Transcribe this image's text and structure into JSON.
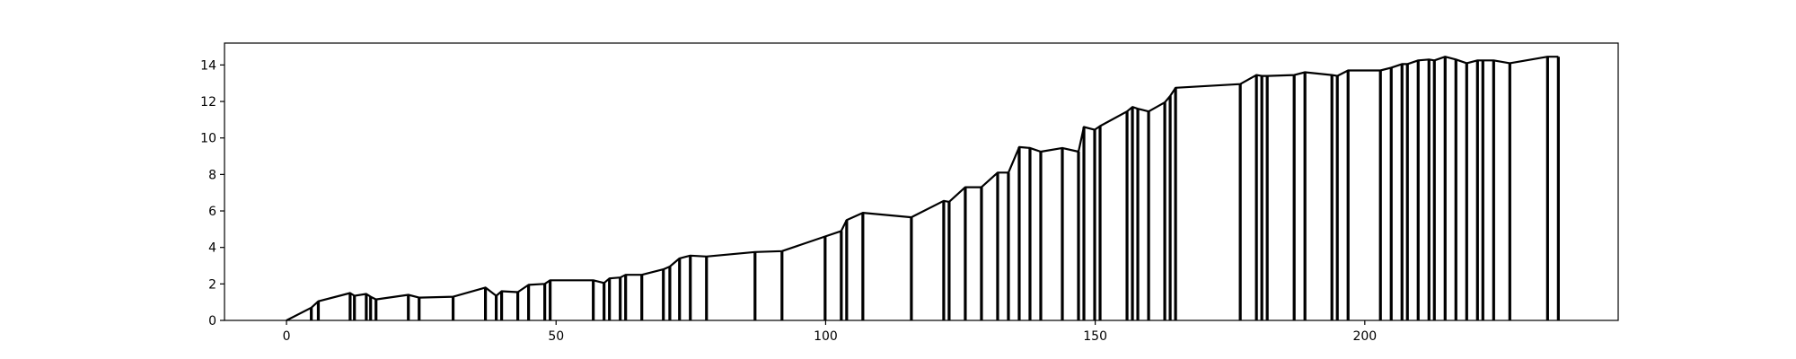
{
  "chart_data": {
    "type": "line",
    "title": "",
    "xlabel": "",
    "ylabel": "",
    "xlim": [
      -11.5,
      247
    ],
    "ylim": [
      0,
      15.2
    ],
    "grid": false,
    "legend": null,
    "x_ticks": [
      0,
      50,
      100,
      150,
      200
    ],
    "y_ticks": [
      0,
      2,
      4,
      6,
      8,
      10,
      12,
      14
    ],
    "line_color": "#000000",
    "series": [
      {
        "x": [
          0,
          4.6,
          5.9,
          11.8,
          12.6,
          14.8,
          15.6,
          16.6,
          22.6,
          24.6,
          30.9,
          36.9,
          38.9,
          39.9,
          42.9,
          44.9,
          47.9,
          48.9,
          56.9,
          58.9,
          59.9,
          61.9,
          62.9,
          65.9,
          69.9,
          71.1,
          72.9,
          74.9,
          77.9,
          86.9,
          91.9,
          99.9,
          102.9,
          103.9,
          106.9,
          115.9,
          121.9,
          122.9,
          125.9,
          128.9,
          131.9,
          133.9,
          135.9,
          137.9,
          139.9,
          143.9,
          146.9,
          147.9,
          149.9,
          150.9,
          155.9,
          156.9,
          157.9,
          159.9,
          162.9,
          163.9,
          164.9,
          176.9,
          179.9,
          180.9,
          181.9,
          186.9,
          188.9,
          193.9,
          194.9,
          196.9,
          202.9,
          204.9,
          206.9,
          207.9,
          209.9,
          211.9,
          212.9,
          214.9,
          216.9,
          218.9,
          220.9,
          221.9,
          223.9,
          226.9,
          233.9,
          235.9
        ],
        "y": [
          0,
          0.7,
          1.05,
          1.5,
          1.35,
          1.45,
          1.3,
          1.15,
          1.4,
          1.25,
          1.3,
          1.8,
          1.35,
          1.6,
          1.55,
          1.95,
          2.0,
          2.2,
          2.2,
          2.05,
          2.3,
          2.35,
          2.5,
          2.5,
          2.8,
          2.95,
          3.4,
          3.55,
          3.5,
          3.75,
          3.8,
          4.6,
          4.9,
          5.5,
          5.9,
          5.65,
          6.55,
          6.5,
          7.3,
          7.3,
          8.1,
          8.1,
          9.5,
          9.45,
          9.25,
          9.45,
          9.25,
          10.6,
          10.45,
          10.65,
          11.45,
          11.7,
          11.6,
          11.45,
          11.95,
          12.3,
          12.75,
          12.95,
          13.45,
          13.4,
          13.4,
          13.45,
          13.6,
          13.45,
          13.4,
          13.7,
          13.7,
          13.85,
          14.05,
          14.05,
          14.25,
          14.3,
          14.25,
          14.45,
          14.3,
          14.1,
          14.25,
          14.25,
          14.25,
          14.1,
          14.45,
          14.45
        ]
      }
    ]
  }
}
